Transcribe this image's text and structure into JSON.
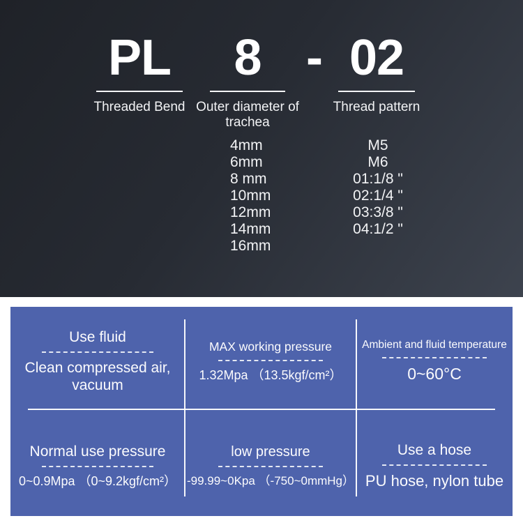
{
  "header": {
    "separator": "-",
    "parts": [
      {
        "code": "PL",
        "label": "Threaded Bend"
      },
      {
        "code": "8",
        "label": "Outer diameter of trachea"
      },
      {
        "code": "02",
        "label": "Thread pattern"
      }
    ]
  },
  "options": {
    "diameters": [
      "4mm",
      "6mm",
      "8 mm",
      "10mm",
      "12mm",
      "14mm",
      "16mm"
    ],
    "threads": [
      "M5",
      "M6",
      "01:1/8 \"",
      "02:1/4 \"",
      "03:3/8 \"",
      "04:1/2 \""
    ]
  },
  "specs": {
    "use_fluid": {
      "title": "Use fluid",
      "value": "Clean compressed air, vacuum"
    },
    "max_pressure": {
      "title": "MAX working pressure",
      "value": "1.32Mpa （13.5kgf/cm²）"
    },
    "temperature": {
      "title": "Ambient and fluid temperature",
      "value": "0~60°C"
    },
    "normal_pressure": {
      "title": "Normal use pressure",
      "value": "0~0.9Mpa （0~9.2kgf/cm²）"
    },
    "low_pressure": {
      "title": "low pressure",
      "value": "-99.99~0Kpa （-750~0mmHg）"
    },
    "hose": {
      "title": "Use a hose",
      "value": "PU hose, nylon tube"
    }
  },
  "colors": {
    "panel_blue": "#4e63ac",
    "dark_top": "#1f2228",
    "dark_mid": "#272b33",
    "dark_bottom": "#3d434e",
    "text": "#ffffff"
  }
}
